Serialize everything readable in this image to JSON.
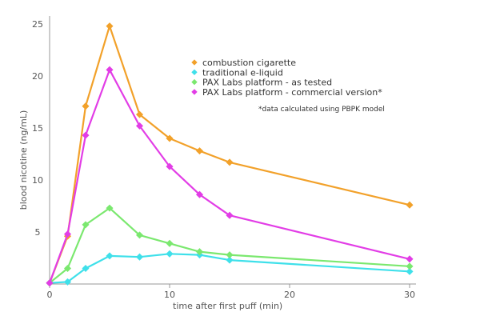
{
  "chart_data": {
    "type": "line",
    "title": "",
    "xlabel": "time after first puff (min)",
    "ylabel": "blood nicotine (ng/mL)",
    "xlim": [
      0,
      30
    ],
    "ylim": [
      0,
      25
    ],
    "xticks": [
      "0",
      "10",
      "20",
      "30"
    ],
    "yticks": [
      "5",
      "10",
      "15",
      "20",
      "25"
    ],
    "grid": false,
    "legend_position": "top-right",
    "annotation": "*data calculated using PBPK model",
    "series": [
      {
        "name": "combustion cigarette",
        "color": "#f2a12a",
        "x": [
          0,
          1.5,
          3,
          5,
          7.5,
          10,
          12.5,
          15,
          30
        ],
        "y": [
          0.1,
          4.6,
          17.1,
          24.8,
          16.3,
          14.0,
          12.8,
          11.7,
          7.6
        ]
      },
      {
        "name": "traditional e-liquid",
        "color": "#3fe0ea",
        "x": [
          0,
          1.5,
          3,
          5,
          7.5,
          10,
          12.5,
          15,
          30
        ],
        "y": [
          0.1,
          0.2,
          1.5,
          2.7,
          2.6,
          2.9,
          2.8,
          2.3,
          1.2
        ]
      },
      {
        "name": "PAX Labs platform - as tested",
        "color": "#7be86f",
        "x": [
          0,
          1.5,
          3,
          5,
          7.5,
          10,
          12.5,
          15,
          30
        ],
        "y": [
          0.1,
          1.5,
          5.7,
          7.3,
          4.7,
          3.9,
          3.1,
          2.8,
          1.7
        ]
      },
      {
        "name": "PAX Labs platform - commercial version*",
        "color": "#e23de6",
        "x": [
          0,
          1.5,
          3,
          5,
          7.5,
          10,
          12.5,
          15,
          30
        ],
        "y": [
          0.1,
          4.8,
          14.3,
          20.6,
          15.2,
          11.3,
          8.6,
          6.6,
          2.4
        ]
      }
    ]
  }
}
